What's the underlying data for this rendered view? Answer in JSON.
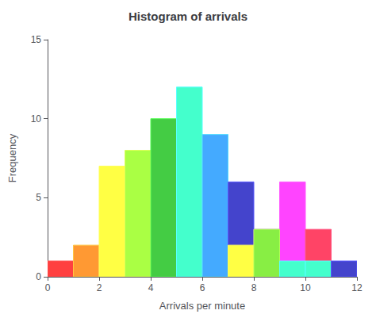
{
  "chart_data": {
    "type": "histogram",
    "title": "Histogram of arrivals",
    "xlabel": "Arrivals per minute",
    "ylabel": "Frequency",
    "xlim": [
      0,
      12
    ],
    "ylim": [
      0,
      15
    ],
    "xticks": [
      0,
      2,
      4,
      6,
      8,
      10,
      12
    ],
    "yticks": [
      0,
      5,
      10,
      15
    ],
    "grid": false,
    "series": [
      {
        "bins": [
          0,
          1,
          2,
          3,
          4,
          5,
          6,
          7,
          8,
          9,
          10,
          11
        ],
        "values": [
          1,
          2,
          7,
          8,
          10,
          12,
          9,
          6,
          3,
          6,
          3
        ],
        "colors": [
          "#FF4040",
          "#FF9933",
          "#FFFF44",
          "#AAFF44",
          "#44CC44",
          "#44FFCC",
          "#44AAFF",
          "#4444CC",
          "#9944FF",
          "#FF44FF",
          "#FF4466"
        ]
      },
      {
        "bins": [
          7,
          8,
          9,
          10,
          11,
          12
        ],
        "values": [
          2,
          3,
          1,
          1,
          1
        ],
        "colors": [
          "#FFFF44",
          "#88EE44",
          "#44FFCC",
          "#44FFCC",
          "#4444CC"
        ]
      }
    ]
  }
}
